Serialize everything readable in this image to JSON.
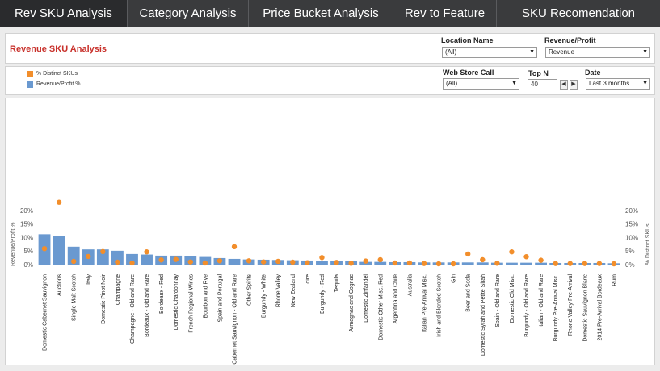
{
  "nav": {
    "tabs": [
      {
        "label": "Rev SKU Analysis"
      },
      {
        "label": "Category Analysis"
      },
      {
        "label": "Price Bucket Analysis"
      },
      {
        "label": "Rev to Feature"
      },
      {
        "label": "SKU Recomendation"
      }
    ]
  },
  "header": {
    "title": "Revenue SKU Analysis"
  },
  "filters": {
    "location": {
      "label": "Location Name",
      "value": "(All)"
    },
    "revenue_profit": {
      "label": "Revenue/Profit",
      "value": "Revenue"
    },
    "web_store": {
      "label": "Web Store Call",
      "value": "(All)"
    },
    "topn": {
      "label": "Top N",
      "value": "40"
    },
    "date": {
      "label": "Date",
      "value": "Last 3 months"
    }
  },
  "legend": {
    "items": [
      {
        "label": "% Distinct SKUs",
        "color": "#f28e2b"
      },
      {
        "label": "Revenue/Profit %",
        "color": "#6a99d0"
      }
    ]
  },
  "chart_data": {
    "type": "bar",
    "title": "",
    "ylabel": "Revenue/Profit %",
    "y2label": "% Distinct SKUs",
    "ylim": [
      0,
      25
    ],
    "y2lim": [
      0,
      25
    ],
    "yticks": [
      "0%",
      "5%",
      "10%",
      "15%",
      "20%"
    ],
    "y2ticks": [
      "0%",
      "5%",
      "10%",
      "15%",
      "20%"
    ],
    "categories": [
      "Domestic Cabernet Sauvignon",
      "Auctions",
      "Single Malt Scotch",
      "Italy",
      "Domestic Pinot Noir",
      "Champagne",
      "Champagne - Old and Rare",
      "Bordeaux - Old and Rare",
      "Bordeaux - Red",
      "Domestic Chardonnay",
      "French Regional Wines",
      "Bourbon and Rye",
      "Spain and Portugal",
      "Domestic Cabernet Sauvignon - Old and Rare",
      "Other Spirits",
      "Burgundy - White",
      "Rhone Valley",
      "New Zealand",
      "Loire",
      "Burgundy - Red",
      "Tequila",
      "Armagnac and Cognac",
      "Domestic Zinfandel",
      "Domestic Other Misc. Red",
      "Argentina and Chile",
      "Australia",
      "Italian Pre-Arrival Misc.",
      "Irish and Blended Scotch",
      "Gin",
      "Beer and Soda",
      "Domestic Syrah and Petite Sirah",
      "Spain - Old and Rare",
      "Domestic Old Misc.",
      "Burgundy - Old and Rare",
      "Italian - Old and Rare",
      "Burgundy Pre-Arrival Misc.",
      "Rhone Valley Pre-Arrival",
      "Domestic Sauvignon Blanc",
      "2014 Pre-Arrival Bordeaux",
      "Rum"
    ],
    "series": [
      {
        "name": "Revenue/Profit %",
        "values": [
          11.2,
          10.7,
          6.6,
          5.6,
          5.6,
          5.1,
          3.9,
          3.7,
          3.3,
          3.3,
          3.1,
          2.8,
          2.4,
          2.1,
          1.9,
          1.8,
          1.7,
          1.6,
          1.5,
          1.3,
          1.2,
          1.2,
          1.0,
          1.0,
          0.9,
          0.9,
          0.8,
          0.8,
          0.8,
          0.8,
          0.8,
          0.7,
          0.7,
          0.7,
          0.7,
          0.6,
          0.6,
          0.6,
          0.6,
          0.5
        ]
      },
      {
        "name": "% Distinct SKUs",
        "values": [
          5.9,
          23.0,
          1.2,
          3.0,
          4.8,
          0.9,
          0.6,
          4.7,
          1.7,
          1.9,
          1.0,
          0.6,
          1.4,
          6.6,
          1.4,
          1.0,
          1.2,
          0.9,
          0.7,
          2.6,
          0.8,
          0.5,
          1.3,
          1.8,
          0.6,
          0.6,
          0.4,
          0.3,
          0.3,
          3.9,
          1.8,
          0.5,
          4.7,
          2.9,
          1.6,
          0.4,
          0.4,
          0.4,
          0.4,
          0.3
        ]
      }
    ],
    "grid": false,
    "legend": "top-left"
  }
}
